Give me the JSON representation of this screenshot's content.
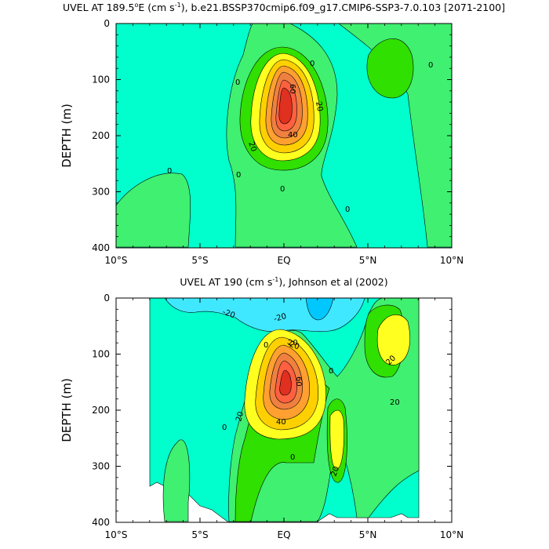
{
  "colors": {
    "neg40": "#00c8ff",
    "neg20": "#40e8ff",
    "neg0": "#00ffcc",
    "pos0": "#40f070",
    "pos10": "#30e000",
    "pos20": "#ffff20",
    "pos30": "#ffd000",
    "pos40": "#ffa030",
    "pos50": "#f08040",
    "pos60": "#ff6040",
    "pos70": "#e03020"
  },
  "chart_data": [
    {
      "type": "contour",
      "title_prefix": "UVEL AT 189.5",
      "title_sup": "o",
      "title_mid": "E (cm s",
      "title_sup2": "-1",
      "title_suffix": "), b.e21.BSSP370cmip6.f09_g17.CMIP6-SSP3-7.0.103 [2071-2100]",
      "ylabel": "DEPTH (m)",
      "x_ticks": [
        "10°S",
        "5°S",
        "EQ",
        "5°N",
        "10°N"
      ],
      "x_values": [
        -10,
        -5,
        0,
        5,
        10
      ],
      "y_ticks": [
        "0",
        "100",
        "200",
        "300",
        "400"
      ],
      "y_values": [
        0,
        100,
        200,
        300,
        400
      ],
      "xlim": [
        -10,
        10
      ],
      "ylim": [
        0,
        400
      ],
      "y_reversed": true,
      "jet_core": {
        "lat": 0.0,
        "depth": 130,
        "max_speed": 80
      },
      "contour_labels": [
        "0",
        "0",
        "0",
        "0",
        "0",
        "0",
        "0",
        "20",
        "20",
        "40",
        "60"
      ]
    },
    {
      "type": "contour",
      "title_prefix": "UVEL AT 190 (cm s",
      "title_sup": "-1",
      "title_suffix": "), Johnson et al (2002)",
      "ylabel": "DEPTH (m)",
      "x_ticks": [
        "10°S",
        "5°S",
        "EQ",
        "5°N",
        "10°N"
      ],
      "x_values": [
        -10,
        -5,
        0,
        5,
        10
      ],
      "y_ticks": [
        "0",
        "100",
        "200",
        "300",
        "400"
      ],
      "y_values": [
        0,
        100,
        200,
        300,
        400
      ],
      "xlim": [
        -10,
        10
      ],
      "ylim": [
        0,
        400
      ],
      "y_reversed": true,
      "data_lat_range": [
        -8,
        8
      ],
      "jet_core": {
        "lat": 0.0,
        "depth": 150,
        "max_speed": 80
      },
      "contour_labels": [
        "-20",
        "-20",
        "-20",
        "0",
        "0",
        "0",
        "0",
        "20",
        "20",
        "20",
        "20",
        "20",
        "40",
        "60"
      ]
    }
  ]
}
